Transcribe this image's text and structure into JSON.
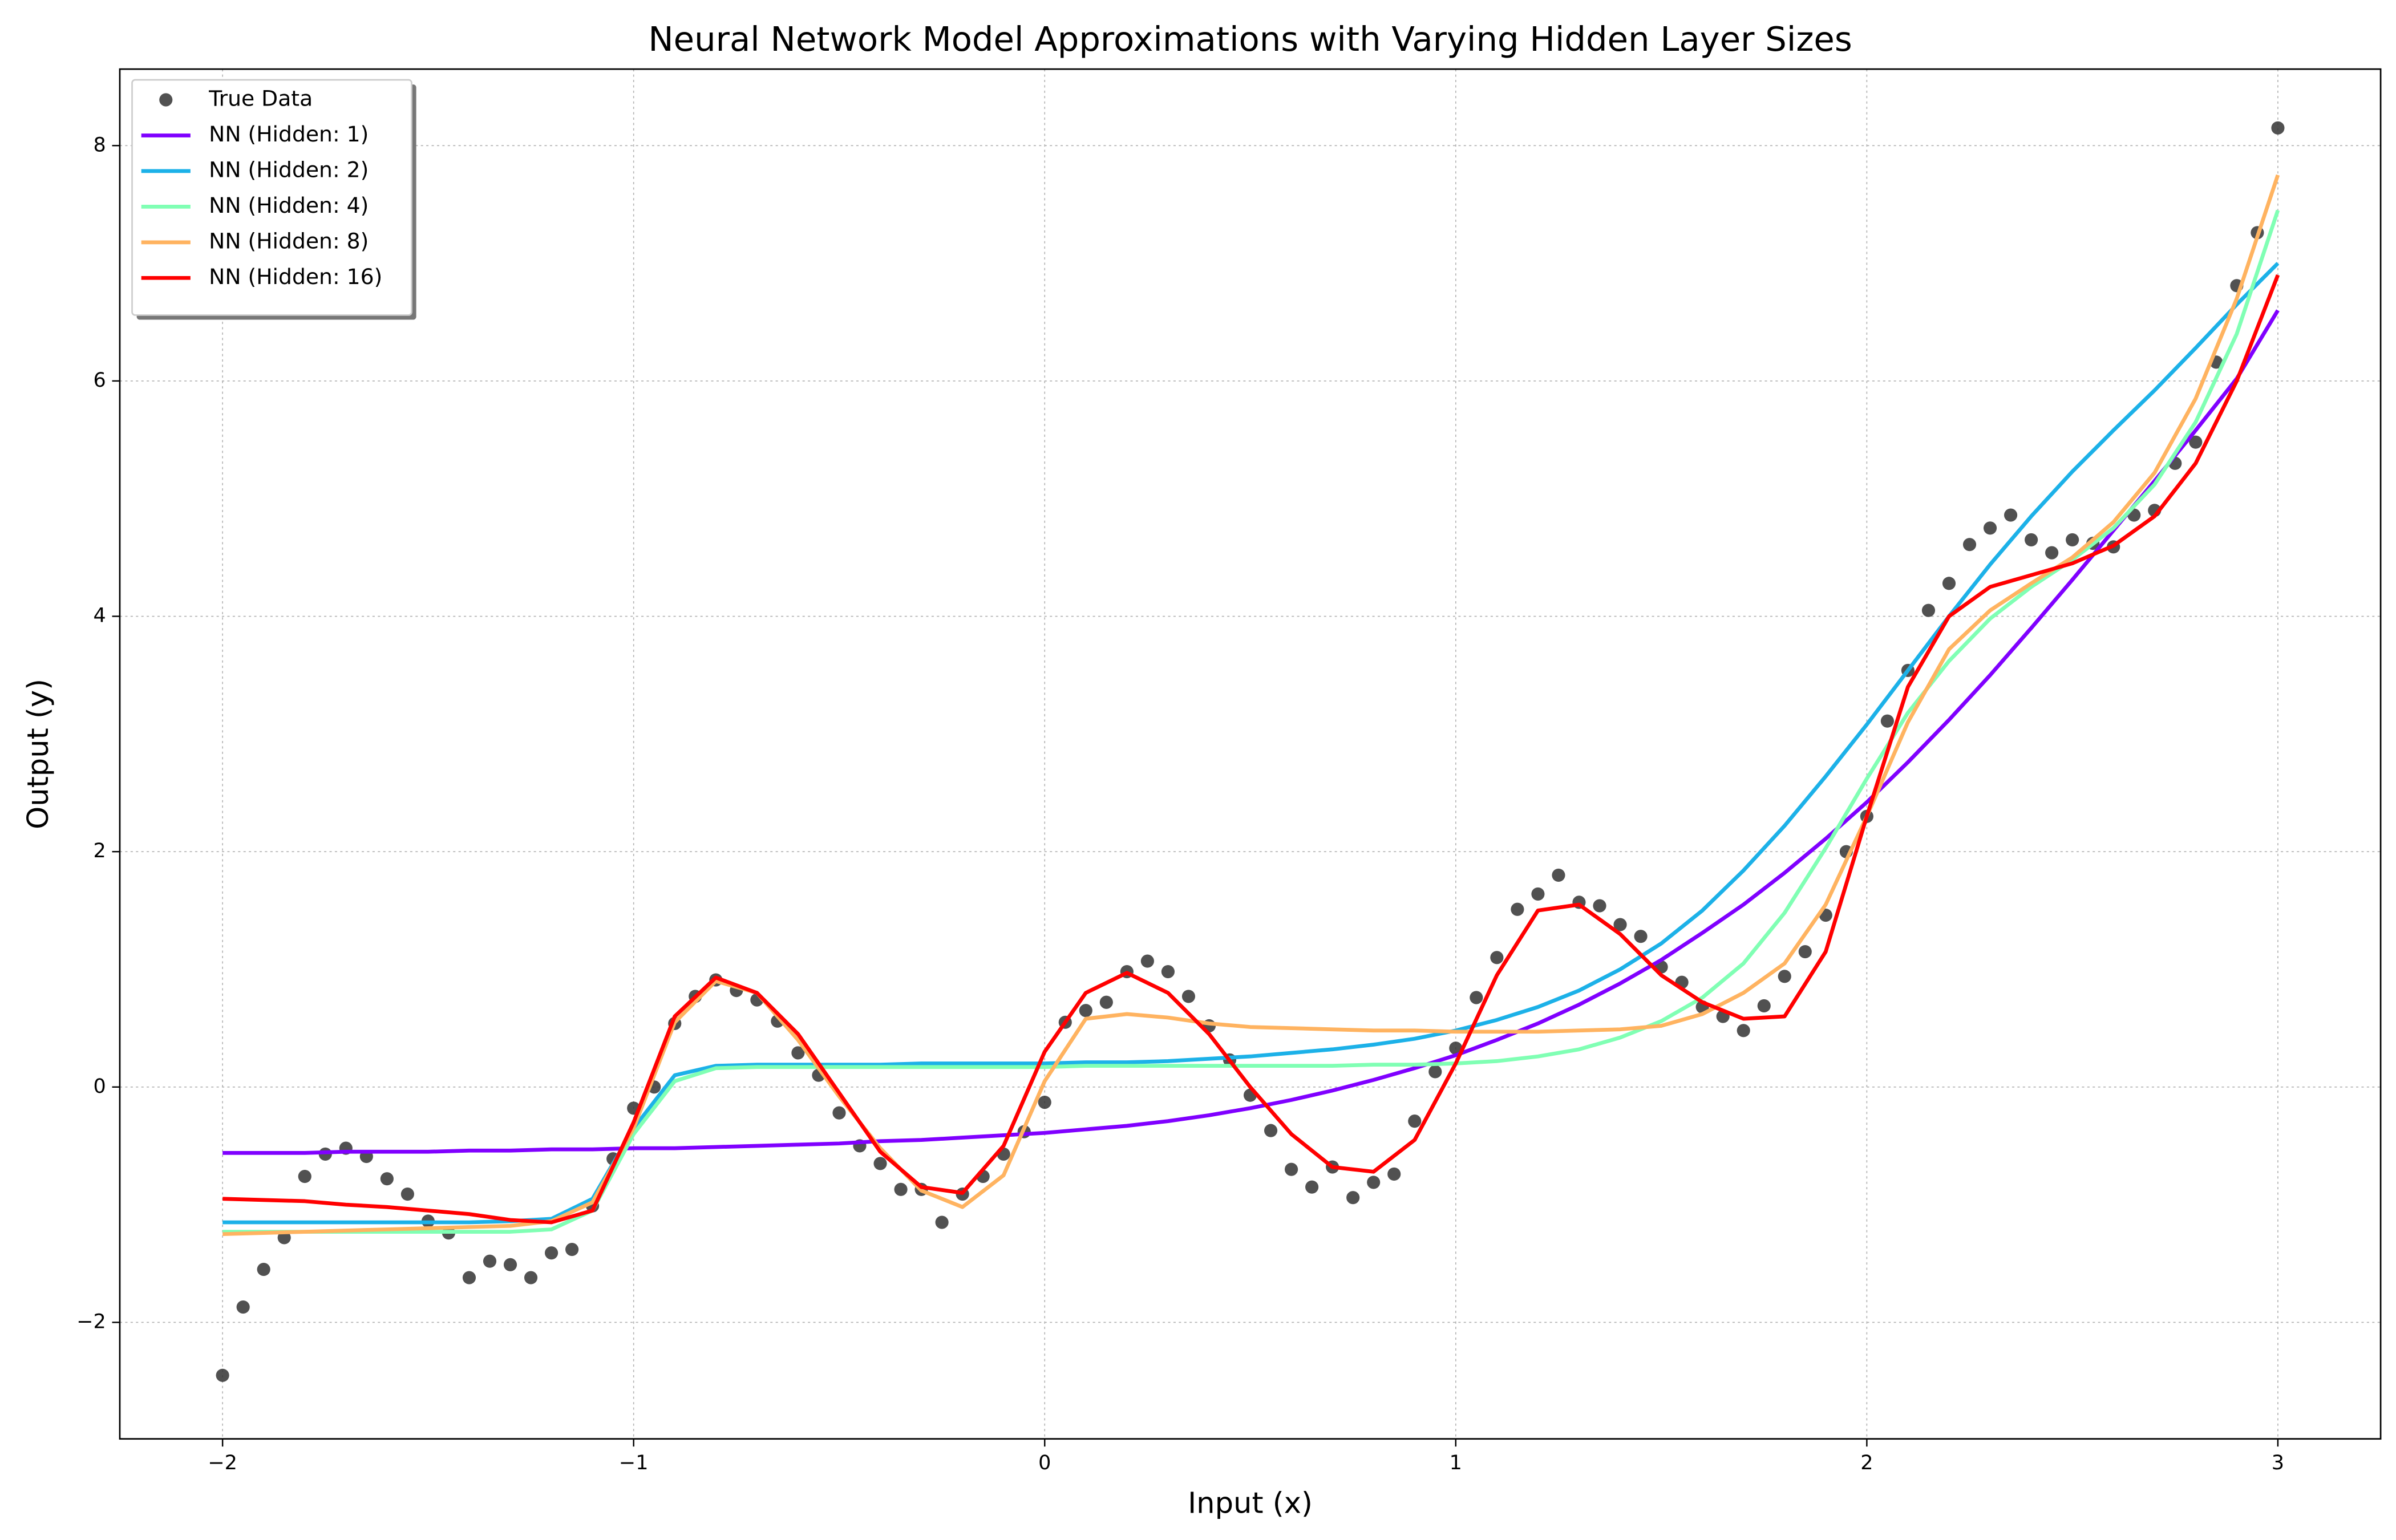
{
  "chart_data": {
    "type": "line",
    "title": "Neural Network Model Approximations with Varying Hidden Layer Sizes",
    "x_label": "Input (x)",
    "y_label": "Output (y)",
    "xlim": [
      -2.25,
      3.25
    ],
    "ylim": [
      -2.99,
      8.65
    ],
    "xticks": [
      {
        "value": -2,
        "label": "−2"
      },
      {
        "value": -1,
        "label": "−1"
      },
      0,
      1,
      2,
      3
    ],
    "yticks": [
      {
        "value": -2,
        "label": "−2"
      },
      0,
      2,
      4,
      6,
      8
    ],
    "grid": true,
    "legend": "upper left",
    "x": [
      -2.0,
      -1.9,
      -1.8,
      -1.7,
      -1.6,
      -1.5,
      -1.4,
      -1.3,
      -1.2,
      -1.1,
      -1.0,
      -0.9,
      -0.8,
      -0.7,
      -0.6,
      -0.5,
      -0.4,
      -0.3,
      -0.2,
      -0.1,
      0.0,
      0.1,
      0.2,
      0.3,
      0.4,
      0.5,
      0.6,
      0.7,
      0.8,
      0.9,
      1.0,
      1.1,
      1.2,
      1.3,
      1.4,
      1.5,
      1.6,
      1.7,
      1.8,
      1.9,
      2.0,
      2.1,
      2.2,
      2.3,
      2.4,
      2.5,
      2.6,
      2.7,
      2.8,
      2.9,
      3.0
    ],
    "series": [
      {
        "name": "True Data",
        "type": "scatter",
        "color": "#333333",
        "x": [
          -2.0,
          -1.95,
          -1.9,
          -1.85,
          -1.8,
          -1.75,
          -1.7,
          -1.65,
          -1.6,
          -1.55,
          -1.5,
          -1.45,
          -1.4,
          -1.35,
          -1.3,
          -1.25,
          -1.2,
          -1.15,
          -1.1,
          -1.05,
          -1.0,
          -0.95,
          -0.9,
          -0.85,
          -0.8,
          -0.75,
          -0.7,
          -0.65,
          -0.6,
          -0.55,
          -0.5,
          -0.45,
          -0.4,
          -0.35,
          -0.3,
          -0.25,
          -0.2,
          -0.15,
          -0.1,
          -0.05,
          0.0,
          0.05,
          0.1,
          0.15,
          0.2,
          0.25,
          0.3,
          0.35,
          0.4,
          0.45,
          0.5,
          0.55,
          0.6,
          0.65,
          0.7,
          0.75,
          0.8,
          0.85,
          0.9,
          0.95,
          1.0,
          1.05,
          1.1,
          1.15,
          1.2,
          1.25,
          1.3,
          1.35,
          1.4,
          1.45,
          1.5,
          1.55,
          1.6,
          1.65,
          1.7,
          1.75,
          1.8,
          1.85,
          1.9,
          1.95,
          2.0,
          2.05,
          2.1,
          2.15,
          2.2,
          2.25,
          2.3,
          2.35,
          2.4,
          2.45,
          2.5,
          2.55,
          2.6,
          2.65,
          2.7,
          2.75,
          2.8,
          2.85,
          2.9,
          2.95,
          3.0
        ],
        "values": [
          -2.45,
          -1.87,
          -1.55,
          -1.28,
          -0.76,
          -0.57,
          -0.52,
          -0.59,
          -0.78,
          -0.91,
          -1.14,
          -1.24,
          -1.62,
          -1.48,
          -1.51,
          -1.62,
          -1.41,
          -1.38,
          -1.01,
          -0.61,
          -0.18,
          0.0,
          0.54,
          0.77,
          0.91,
          0.82,
          0.74,
          0.56,
          0.29,
          0.1,
          -0.22,
          -0.5,
          -0.65,
          -0.87,
          -0.87,
          -1.15,
          -0.91,
          -0.76,
          -0.57,
          -0.38,
          -0.13,
          0.55,
          0.65,
          0.72,
          0.98,
          1.07,
          0.98,
          0.77,
          0.52,
          0.23,
          -0.07,
          -0.37,
          -0.7,
          -0.85,
          -0.68,
          -0.94,
          -0.81,
          -0.74,
          -0.29,
          0.13,
          0.33,
          0.76,
          1.1,
          1.51,
          1.64,
          1.8,
          1.57,
          1.54,
          1.38,
          1.28,
          1.02,
          0.89,
          0.68,
          0.6,
          0.48,
          0.69,
          0.94,
          1.15,
          1.46,
          2.0,
          2.3,
          3.11,
          3.54,
          4.05,
          4.28,
          4.61,
          4.75,
          4.86,
          4.65,
          4.54,
          4.65,
          4.62,
          4.59,
          4.86,
          4.9,
          5.3,
          5.48,
          6.16,
          6.81,
          7.26,
          8.15
        ]
      },
      {
        "name": "NN (Hidden: 1)",
        "color": "#8000ff",
        "values": [
          -0.56,
          -0.56,
          -0.56,
          -0.55,
          -0.55,
          -0.55,
          -0.54,
          -0.54,
          -0.53,
          -0.53,
          -0.52,
          -0.52,
          -0.51,
          -0.5,
          -0.49,
          -0.48,
          -0.46,
          -0.45,
          -0.43,
          -0.41,
          -0.39,
          -0.36,
          -0.33,
          -0.29,
          -0.24,
          -0.18,
          -0.11,
          -0.03,
          0.06,
          0.16,
          0.27,
          0.4,
          0.54,
          0.7,
          0.88,
          1.08,
          1.31,
          1.55,
          1.82,
          2.11,
          2.42,
          2.76,
          3.12,
          3.5,
          3.9,
          4.31,
          4.73,
          5.15,
          5.58,
          6.02,
          6.6
        ]
      },
      {
        "name": "NN (Hidden: 2)",
        "color": "#1cb1e8",
        "values": [
          -1.15,
          -1.15,
          -1.15,
          -1.15,
          -1.15,
          -1.15,
          -1.15,
          -1.14,
          -1.12,
          -0.95,
          -0.35,
          0.1,
          0.18,
          0.19,
          0.19,
          0.19,
          0.19,
          0.2,
          0.2,
          0.2,
          0.2,
          0.21,
          0.21,
          0.22,
          0.24,
          0.26,
          0.29,
          0.32,
          0.36,
          0.41,
          0.48,
          0.57,
          0.68,
          0.82,
          1.0,
          1.22,
          1.5,
          1.84,
          2.22,
          2.64,
          3.08,
          3.54,
          4.0,
          4.44,
          4.85,
          5.23,
          5.58,
          5.92,
          6.28,
          6.65,
          7.0
        ]
      },
      {
        "name": "NN (Hidden: 4)",
        "color": "#80ffb4",
        "values": [
          -1.23,
          -1.23,
          -1.23,
          -1.23,
          -1.23,
          -1.23,
          -1.23,
          -1.23,
          -1.21,
          -1.05,
          -0.4,
          0.05,
          0.16,
          0.17,
          0.17,
          0.17,
          0.17,
          0.17,
          0.17,
          0.17,
          0.17,
          0.18,
          0.18,
          0.18,
          0.18,
          0.18,
          0.18,
          0.18,
          0.19,
          0.19,
          0.2,
          0.22,
          0.26,
          0.32,
          0.42,
          0.56,
          0.76,
          1.05,
          1.48,
          2.03,
          2.62,
          3.18,
          3.62,
          3.98,
          4.25,
          4.48,
          4.75,
          5.12,
          5.65,
          6.4,
          7.45
        ]
      },
      {
        "name": "NN (Hidden: 8)",
        "color": "#ffb360",
        "values": [
          -1.25,
          -1.24,
          -1.23,
          -1.22,
          -1.21,
          -1.2,
          -1.19,
          -1.18,
          -1.14,
          -0.98,
          -0.35,
          0.55,
          0.9,
          0.8,
          0.4,
          -0.08,
          -0.52,
          -0.88,
          -1.02,
          -0.75,
          0.05,
          0.58,
          0.62,
          0.59,
          0.54,
          0.51,
          0.5,
          0.49,
          0.48,
          0.48,
          0.47,
          0.47,
          0.47,
          0.48,
          0.49,
          0.52,
          0.62,
          0.8,
          1.05,
          1.55,
          2.3,
          3.1,
          3.72,
          4.05,
          4.28,
          4.5,
          4.8,
          5.22,
          5.85,
          6.7,
          7.75
        ]
      },
      {
        "name": "NN (Hidden: 16)",
        "color": "#ff0000",
        "values": [
          -0.95,
          -0.96,
          -0.97,
          -1.0,
          -1.02,
          -1.05,
          -1.08,
          -1.13,
          -1.15,
          -1.05,
          -0.3,
          0.6,
          0.93,
          0.8,
          0.45,
          -0.05,
          -0.55,
          -0.85,
          -0.9,
          -0.5,
          0.3,
          0.8,
          0.97,
          0.8,
          0.45,
          0.0,
          -0.4,
          -0.68,
          -0.72,
          -0.45,
          0.2,
          0.95,
          1.5,
          1.55,
          1.3,
          0.95,
          0.72,
          0.58,
          0.6,
          1.15,
          2.3,
          3.4,
          4.0,
          4.25,
          4.35,
          4.45,
          4.6,
          4.85,
          5.3,
          6.0,
          6.9
        ]
      }
    ]
  }
}
